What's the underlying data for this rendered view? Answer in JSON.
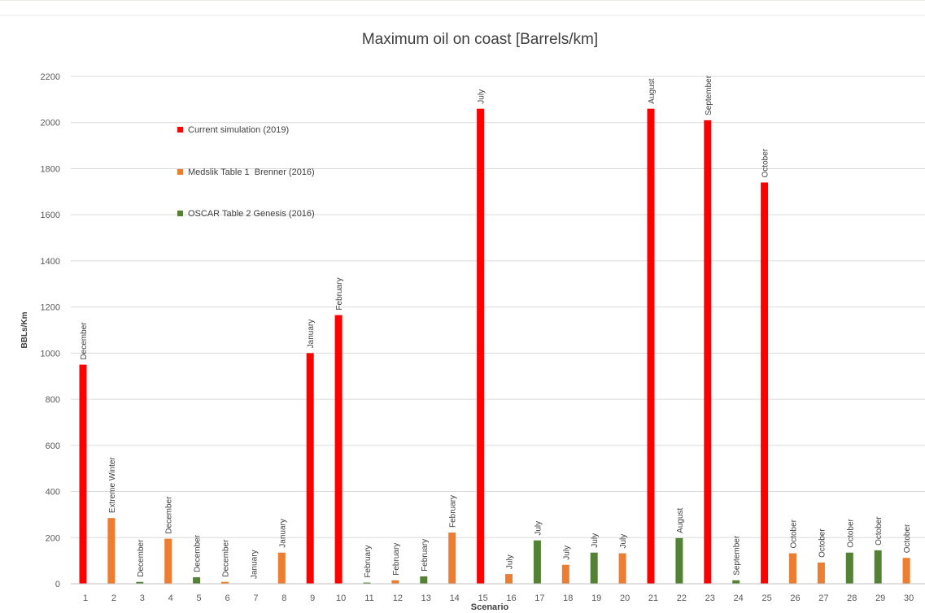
{
  "chart_data": {
    "type": "bar",
    "title": "Maximum oil on coast [Barrels/km]",
    "xlabel": "Scenario",
    "ylabel": "BBLs/Km",
    "ylim": [
      0,
      2200
    ],
    "yticks": [
      0,
      200,
      400,
      600,
      800,
      1000,
      1200,
      1400,
      1600,
      1800,
      2000,
      2200
    ],
    "grid": true,
    "legend_position": "top-left",
    "series": [
      {
        "name": "Current simulation (2019)",
        "color": "#ff0000"
      },
      {
        "name": "Medslik Table 1  Brenner (2016)",
        "color": "#ed7d31"
      },
      {
        "name": "OSCAR Table 2 Genesis (2016)",
        "color": "#548235"
      }
    ],
    "bars": [
      {
        "scenario": "1",
        "value": 950,
        "series": 0,
        "label": "December"
      },
      {
        "scenario": "2",
        "value": 285,
        "series": 1,
        "label": "Extreme Winter"
      },
      {
        "scenario": "3",
        "value": 8,
        "series": 2,
        "label": "December"
      },
      {
        "scenario": "4",
        "value": 195,
        "series": 1,
        "label": "December"
      },
      {
        "scenario": "5",
        "value": 28,
        "series": 2,
        "label": "December"
      },
      {
        "scenario": "6",
        "value": 8,
        "series": 1,
        "label": "December"
      },
      {
        "scenario": "7",
        "value": 0,
        "series": 1,
        "label": "January"
      },
      {
        "scenario": "8",
        "value": 135,
        "series": 1,
        "label": "January"
      },
      {
        "scenario": "9",
        "value": 1000,
        "series": 0,
        "label": "January"
      },
      {
        "scenario": "10",
        "value": 1165,
        "series": 0,
        "label": "February"
      },
      {
        "scenario": "11",
        "value": 5,
        "series": 2,
        "label": "February"
      },
      {
        "scenario": "12",
        "value": 15,
        "series": 1,
        "label": "February"
      },
      {
        "scenario": "13",
        "value": 32,
        "series": 2,
        "label": "February"
      },
      {
        "scenario": "14",
        "value": 222,
        "series": 1,
        "label": "February"
      },
      {
        "scenario": "15",
        "value": 2060,
        "series": 0,
        "label": "July"
      },
      {
        "scenario": "16",
        "value": 42,
        "series": 1,
        "label": "July"
      },
      {
        "scenario": "17",
        "value": 188,
        "series": 2,
        "label": "July"
      },
      {
        "scenario": "18",
        "value": 82,
        "series": 1,
        "label": "July"
      },
      {
        "scenario": "19",
        "value": 135,
        "series": 2,
        "label": "July"
      },
      {
        "scenario": "20",
        "value": 132,
        "series": 1,
        "label": "July"
      },
      {
        "scenario": "21",
        "value": 2060,
        "series": 0,
        "label": "August"
      },
      {
        "scenario": "22",
        "value": 198,
        "series": 2,
        "label": "August"
      },
      {
        "scenario": "23",
        "value": 2010,
        "series": 0,
        "label": "September"
      },
      {
        "scenario": "24",
        "value": 15,
        "series": 2,
        "label": "September"
      },
      {
        "scenario": "25",
        "value": 1740,
        "series": 0,
        "label": "October"
      },
      {
        "scenario": "26",
        "value": 132,
        "series": 1,
        "label": "October"
      },
      {
        "scenario": "27",
        "value": 92,
        "series": 1,
        "label": "October"
      },
      {
        "scenario": "28",
        "value": 135,
        "series": 2,
        "label": "October"
      },
      {
        "scenario": "29",
        "value": 145,
        "series": 2,
        "label": "October"
      },
      {
        "scenario": "30",
        "value": 112,
        "series": 1,
        "label": "October"
      }
    ]
  }
}
